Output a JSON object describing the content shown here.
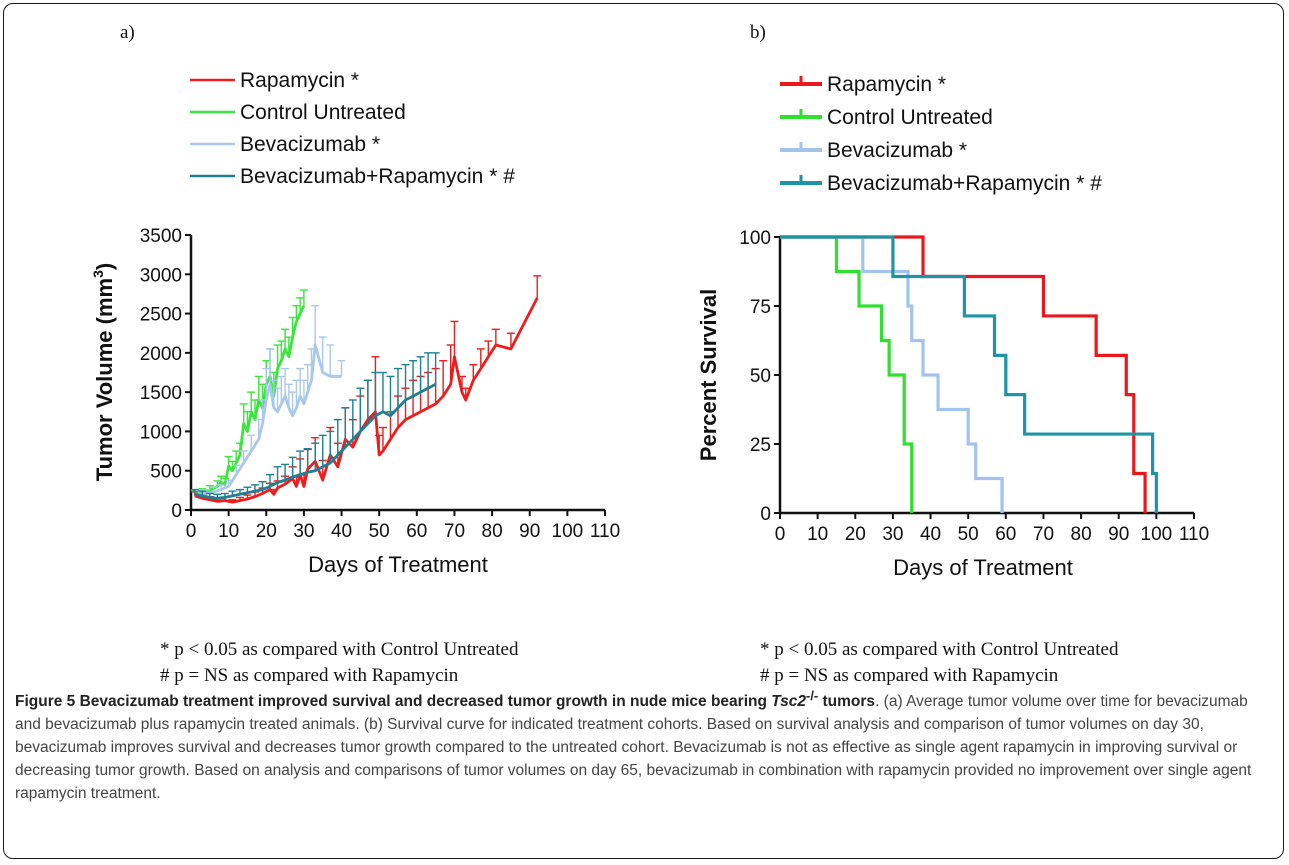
{
  "panels": {
    "a": {
      "label": "a)"
    },
    "b": {
      "label": "b)"
    }
  },
  "notes": {
    "line1": "* p < 0.05 as compared with Control Untreated",
    "line2": "# p = NS as compared with Rapamycin"
  },
  "caption": {
    "bold_prefix": "Figure 5 Bevacizumab treatment improved survival and decreased tumor growth in nude mice bearing ",
    "gene": "Tsc2",
    "gene_sup": "-/-",
    "bold_suffix": " tumors",
    "body": ". (a) Average tumor volume over time for bevacizumab and bevacizumab plus rapamycin treated animals. (b) Survival curve for indicated treatment cohorts. Based on survival analysis and comparison of tumor volumes on day 30, bevacizumab improves survival and decreases tumor growth compared to the untreated cohort. Bevacizumab is not as effective as single agent rapamycin in improving survival or decreasing tumor growth. Based on analysis and comparisons of tumor volumes on day 65, bevacizumab in combination with rapamycin provided no improvement over single agent rapamycin treatment."
  },
  "chart_data": [
    {
      "type": "line",
      "panel": "a",
      "xlabel": "Days of Treatment",
      "ylabel": "Tumor Volume (mm3)",
      "ylabel_text": "Tumor  Volume  (mm",
      "ylabel_sup": "3",
      "ylabel_close": ")",
      "xlim": [
        0,
        110
      ],
      "ylim": [
        0,
        3500
      ],
      "xticks": [
        0,
        10,
        20,
        30,
        40,
        50,
        60,
        70,
        80,
        90,
        100,
        110
      ],
      "yticks": [
        0,
        500,
        1000,
        1500,
        2000,
        2500,
        3000,
        3500
      ],
      "series": [
        {
          "name": "Rapamycin *",
          "color": "#ee1c1c",
          "points": [
            [
              1,
              180
            ],
            [
              3,
              150
            ],
            [
              5,
              130
            ],
            [
              7,
              110
            ],
            [
              9,
              120
            ],
            [
              11,
              100
            ],
            [
              13,
              120
            ],
            [
              15,
              140
            ],
            [
              17,
              170
            ],
            [
              19,
              210
            ],
            [
              21,
              260
            ],
            [
              22,
              200
            ],
            [
              23,
              280
            ],
            [
              25,
              330
            ],
            [
              27,
              400
            ],
            [
              28,
              300
            ],
            [
              29,
              450
            ],
            [
              30,
              300
            ],
            [
              31,
              520
            ],
            [
              33,
              620
            ],
            [
              35,
              380
            ],
            [
              37,
              700
            ],
            [
              39,
              550
            ],
            [
              41,
              900
            ],
            [
              43,
              800
            ],
            [
              45,
              1000
            ],
            [
              47,
              1150
            ],
            [
              49,
              1250
            ],
            [
              50,
              700
            ],
            [
              51,
              750
            ],
            [
              53,
              900
            ],
            [
              55,
              1050
            ],
            [
              57,
              1150
            ],
            [
              59,
              1200
            ],
            [
              61,
              1250
            ],
            [
              63,
              1300
            ],
            [
              65,
              1350
            ],
            [
              67,
              1450
            ],
            [
              69,
              1600
            ],
            [
              70,
              1950
            ],
            [
              72,
              1500
            ],
            [
              73,
              1400
            ],
            [
              75,
              1650
            ],
            [
              77,
              1800
            ],
            [
              79,
              1950
            ],
            [
              81,
              2100
            ],
            [
              85,
              2050
            ],
            [
              92,
              2700
            ]
          ],
          "errors": [
            50,
            40,
            40,
            30,
            40,
            30,
            40,
            50,
            60,
            70,
            80,
            60,
            90,
            100,
            150,
            120,
            200,
            150,
            250,
            300,
            250,
            350,
            300,
            400,
            350,
            450,
            500,
            700,
            250,
            300,
            350,
            400,
            400,
            450,
            450,
            450,
            450,
            450,
            500,
            450,
            200,
            150,
            200,
            250,
            200,
            200,
            200,
            280
          ]
        },
        {
          "name": "Control Untreated",
          "color": "#39e639",
          "points": [
            [
              1,
              200
            ],
            [
              3,
              220
            ],
            [
              5,
              250
            ],
            [
              7,
              300
            ],
            [
              8,
              350
            ],
            [
              9,
              320
            ],
            [
              10,
              560
            ],
            [
              11,
              500
            ],
            [
              12,
              600
            ],
            [
              13,
              700
            ],
            [
              14,
              1100
            ],
            [
              15,
              1000
            ],
            [
              16,
              1250
            ],
            [
              17,
              1150
            ],
            [
              18,
              1400
            ],
            [
              19,
              1300
            ],
            [
              20,
              1600
            ],
            [
              21,
              1700
            ],
            [
              22,
              1450
            ],
            [
              23,
              1800
            ],
            [
              24,
              1900
            ],
            [
              25,
              2050
            ],
            [
              26,
              1950
            ],
            [
              27,
              2200
            ],
            [
              28,
              2400
            ],
            [
              29,
              2500
            ],
            [
              30,
              2600
            ]
          ],
          "errors": [
            50,
            50,
            60,
            70,
            80,
            80,
            120,
            120,
            150,
            150,
            250,
            250,
            250,
            250,
            300,
            300,
            300,
            350,
            300,
            300,
            250,
            250,
            250,
            250,
            200,
            200,
            200
          ]
        },
        {
          "name": "Bevacizumab *",
          "color": "#a9c8ee",
          "points": [
            [
              2,
              200
            ],
            [
              4,
              210
            ],
            [
              6,
              230
            ],
            [
              8,
              260
            ],
            [
              10,
              300
            ],
            [
              12,
              450
            ],
            [
              14,
              600
            ],
            [
              16,
              750
            ],
            [
              18,
              900
            ],
            [
              19,
              1100
            ],
            [
              20,
              1400
            ],
            [
              21,
              1600
            ],
            [
              22,
              1300
            ],
            [
              23,
              1250
            ],
            [
              24,
              1350
            ],
            [
              25,
              1450
            ],
            [
              26,
              1300
            ],
            [
              27,
              1200
            ],
            [
              28,
              1300
            ],
            [
              29,
              1450
            ],
            [
              30,
              1350
            ],
            [
              31,
              1500
            ],
            [
              32,
              1650
            ],
            [
              33,
              2100
            ],
            [
              35,
              1750
            ],
            [
              37,
              1700
            ],
            [
              40,
              1700
            ]
          ],
          "errors": [
            50,
            50,
            60,
            60,
            80,
            120,
            150,
            200,
            250,
            300,
            400,
            450,
            350,
            300,
            350,
            350,
            300,
            300,
            350,
            350,
            300,
            350,
            400,
            500,
            450,
            400,
            200
          ]
        },
        {
          "name": "Bevacizumab+Rapamycin * #",
          "color": "#1f7f93",
          "points": [
            [
              1,
              200
            ],
            [
              3,
              180
            ],
            [
              5,
              160
            ],
            [
              7,
              150
            ],
            [
              9,
              160
            ],
            [
              11,
              180
            ],
            [
              13,
              200
            ],
            [
              15,
              220
            ],
            [
              17,
              240
            ],
            [
              19,
              260
            ],
            [
              21,
              300
            ],
            [
              23,
              350
            ],
            [
              25,
              380
            ],
            [
              27,
              420
            ],
            [
              29,
              450
            ],
            [
              31,
              480
            ],
            [
              33,
              500
            ],
            [
              35,
              550
            ],
            [
              37,
              600
            ],
            [
              39,
              700
            ],
            [
              41,
              800
            ],
            [
              43,
              900
            ],
            [
              45,
              1000
            ],
            [
              47,
              1100
            ],
            [
              49,
              1200
            ],
            [
              51,
              1250
            ],
            [
              53,
              1200
            ],
            [
              55,
              1300
            ],
            [
              57,
              1400
            ],
            [
              59,
              1450
            ],
            [
              61,
              1500
            ],
            [
              63,
              1550
            ],
            [
              65,
              1600
            ]
          ],
          "errors": [
            60,
            60,
            50,
            50,
            50,
            60,
            60,
            70,
            80,
            100,
            150,
            200,
            200,
            250,
            300,
            300,
            350,
            400,
            400,
            450,
            500,
            500,
            550,
            550,
            550,
            500,
            500,
            500,
            450,
            450,
            450,
            450,
            400
          ]
        }
      ]
    },
    {
      "type": "line",
      "subtype": "step",
      "panel": "b",
      "xlabel": "Days of Treatment",
      "ylabel": "Percent Survival",
      "xlim": [
        0,
        110
      ],
      "ylim": [
        0,
        100
      ],
      "xticks": [
        0,
        10,
        20,
        30,
        40,
        50,
        60,
        70,
        80,
        90,
        100,
        110
      ],
      "yticks": [
        0,
        25,
        50,
        75,
        100
      ],
      "series": [
        {
          "name": "Rapamycin *",
          "color": "#e8181c",
          "steps": [
            [
              0,
              100
            ],
            [
              38,
              85.7
            ],
            [
              70,
              71.4
            ],
            [
              84,
              57.1
            ],
            [
              92,
              42.9
            ],
            [
              94,
              14.3
            ],
            [
              97,
              0
            ]
          ]
        },
        {
          "name": "Control Untreated",
          "color": "#2fe02f",
          "steps": [
            [
              0,
              100
            ],
            [
              15,
              87.5
            ],
            [
              21,
              75
            ],
            [
              27,
              62.5
            ],
            [
              29,
              50
            ],
            [
              33,
              25
            ],
            [
              35,
              0
            ]
          ]
        },
        {
          "name": "Bevacizumab *",
          "color": "#a2c3ec",
          "steps": [
            [
              0,
              100
            ],
            [
              22,
              87.5
            ],
            [
              34,
              75
            ],
            [
              35,
              62.5
            ],
            [
              38,
              50
            ],
            [
              42,
              37.5
            ],
            [
              50,
              25
            ],
            [
              52,
              12.5
            ],
            [
              59,
              0
            ]
          ]
        },
        {
          "name": "Bevacizumab+Rapamycin * #",
          "color": "#1e94a6",
          "steps": [
            [
              0,
              100
            ],
            [
              30,
              85.7
            ],
            [
              49,
              71.4
            ],
            [
              57,
              57.1
            ],
            [
              60,
              42.9
            ],
            [
              65,
              28.6
            ],
            [
              99,
              14.3
            ],
            [
              100,
              0
            ]
          ]
        }
      ]
    }
  ]
}
